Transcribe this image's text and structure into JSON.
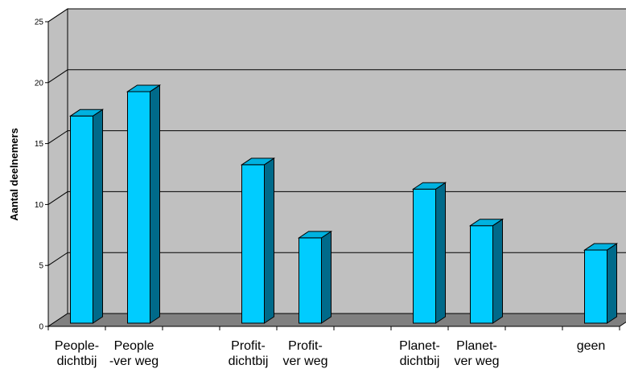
{
  "chart_data": {
    "type": "bar",
    "categories": [
      [
        "People-",
        "dichtbij"
      ],
      [
        "People",
        "-ver weg"
      ],
      [
        "",
        ""
      ],
      [
        "Profit-",
        "dichtbij"
      ],
      [
        "Profit-",
        "ver weg"
      ],
      [
        "",
        ""
      ],
      [
        "Planet-",
        "dichtbij"
      ],
      [
        "Planet-",
        "ver weg"
      ],
      [
        "",
        ""
      ],
      [
        "geen",
        ""
      ]
    ],
    "values": [
      17,
      19,
      null,
      13,
      7,
      null,
      11,
      8,
      null,
      6
    ],
    "ylabel": "Aantal deelnemers",
    "xlabel": "",
    "ylim": [
      0,
      25
    ],
    "yticks": [
      0,
      5,
      10,
      15,
      20,
      25
    ],
    "grid": true,
    "bar_color": "#00ccff",
    "wall_color": "#c0c0c0",
    "floor_color": "#808080",
    "legend": "none"
  }
}
